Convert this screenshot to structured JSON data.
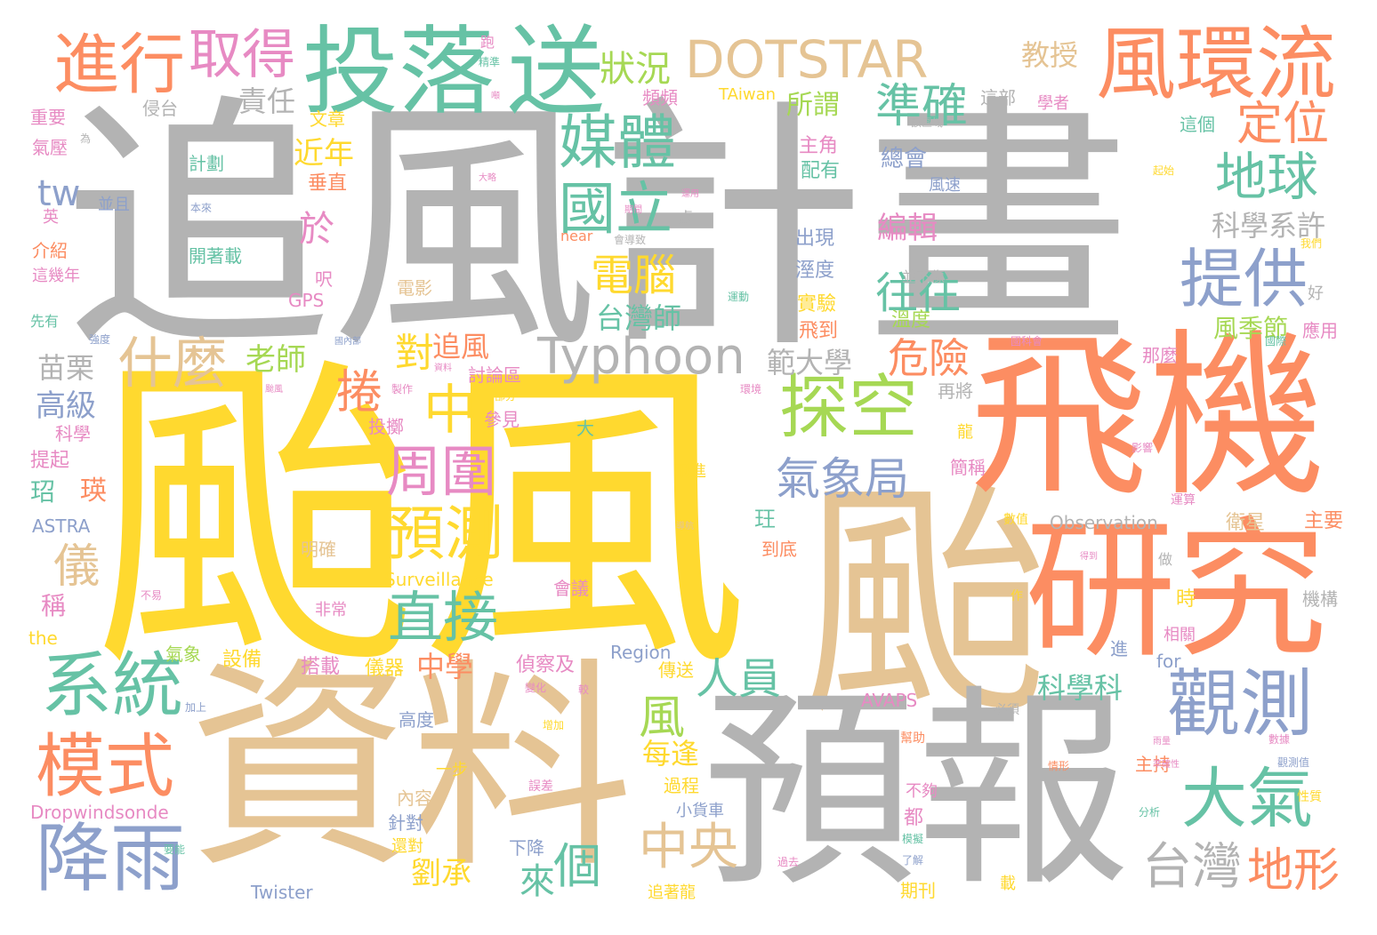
{
  "palette": {
    "gray": "#b3b3b3",
    "yellow": "#ffd92f",
    "tan": "#e5c494",
    "orange": "#fc8d62",
    "green": "#66c2a5",
    "blue": "#8da0cb",
    "lime": "#a6d854",
    "pink": "#e78ac3"
  },
  "words": [
    {
      "text": "追風計畫",
      "color": "gray"
    },
    {
      "text": "颱風",
      "color": "yellow"
    },
    {
      "text": "颱",
      "color": "tan"
    },
    {
      "text": "資料",
      "color": "tan"
    },
    {
      "text": "預報",
      "color": "gray"
    },
    {
      "text": "飛機",
      "color": "orange"
    },
    {
      "text": "研究",
      "color": "orange"
    },
    {
      "text": "投落",
      "color": "green"
    },
    {
      "text": "送",
      "color": "green"
    },
    {
      "text": "DOTSTAR",
      "color": "tan"
    },
    {
      "text": "風環流",
      "color": "orange"
    },
    {
      "text": "進行",
      "color": "orange"
    },
    {
      "text": "取得",
      "color": "pink"
    },
    {
      "text": "媒體",
      "color": "green"
    },
    {
      "text": "國立",
      "color": "green"
    },
    {
      "text": "準確",
      "color": "green"
    },
    {
      "text": "定位",
      "color": "orange"
    },
    {
      "text": "地球",
      "color": "green"
    },
    {
      "text": "提供",
      "color": "blue"
    },
    {
      "text": "探空",
      "color": "lime"
    },
    {
      "text": "觀測",
      "color": "blue"
    },
    {
      "text": "大氣",
      "color": "green"
    },
    {
      "text": "系統",
      "color": "green"
    },
    {
      "text": "模式",
      "color": "orange"
    },
    {
      "text": "降雨",
      "color": "blue"
    },
    {
      "text": "預測",
      "color": "yellow"
    },
    {
      "text": "直接",
      "color": "green"
    },
    {
      "text": "周圍",
      "color": "pink"
    },
    {
      "text": "氣象局",
      "color": "blue"
    },
    {
      "text": "Typhoon",
      "color": "gray"
    },
    {
      "text": "什麼",
      "color": "tan"
    },
    {
      "text": "電腦",
      "color": "yellow"
    },
    {
      "text": "往往",
      "color": "green"
    },
    {
      "text": "危險",
      "color": "orange"
    },
    {
      "text": "中央",
      "color": "tan"
    },
    {
      "text": "台灣",
      "color": "gray"
    },
    {
      "text": "地形",
      "color": "orange"
    },
    {
      "text": "人員",
      "color": "green"
    },
    {
      "text": "個",
      "color": "green"
    },
    {
      "text": "狀況",
      "color": "lime"
    },
    {
      "text": "教授",
      "color": "tan"
    },
    {
      "text": "中",
      "color": "yellow"
    },
    {
      "text": "捲",
      "color": "orange"
    },
    {
      "text": "對",
      "color": "yellow"
    },
    {
      "text": "儀",
      "color": "tan"
    },
    {
      "text": "風",
      "color": "lime"
    },
    {
      "text": "來",
      "color": "green"
    },
    {
      "text": "tw",
      "color": "blue"
    },
    {
      "text": "於",
      "color": "pink"
    },
    {
      "text": "責任",
      "color": "gray"
    },
    {
      "text": "所謂",
      "color": "lime"
    },
    {
      "text": "近年",
      "color": "yellow"
    },
    {
      "text": "老師",
      "color": "lime"
    },
    {
      "text": "追風",
      "color": "orange"
    },
    {
      "text": "台灣師",
      "color": "green"
    },
    {
      "text": "範大學",
      "color": "gray"
    },
    {
      "text": "中學",
      "color": "orange"
    },
    {
      "text": "苗栗",
      "color": "gray"
    },
    {
      "text": "高級",
      "color": "blue"
    },
    {
      "text": "科學系許",
      "color": "gray"
    },
    {
      "text": "風季節",
      "color": "lime"
    },
    {
      "text": "科學科",
      "color": "green"
    },
    {
      "text": "劉承",
      "color": "yellow"
    },
    {
      "text": "每逢",
      "color": "yellow"
    },
    {
      "text": "編輯",
      "color": "pink"
    },
    {
      "text": "總會",
      "color": "blue"
    },
    {
      "text": "主角",
      "color": "pink"
    },
    {
      "text": "配有",
      "color": "green"
    },
    {
      "text": "出現",
      "color": "blue"
    },
    {
      "text": "溼度",
      "color": "blue"
    },
    {
      "text": "實驗",
      "color": "yellow"
    },
    {
      "text": "飛到",
      "color": "orange"
    },
    {
      "text": "溫度",
      "color": "lime"
    },
    {
      "text": "再將",
      "color": "gray"
    },
    {
      "text": "垂直",
      "color": "orange"
    },
    {
      "text": "計劃",
      "color": "green"
    },
    {
      "text": "開著載",
      "color": "green"
    },
    {
      "text": "文章",
      "color": "yellow"
    },
    {
      "text": "頻頻",
      "color": "pink"
    },
    {
      "text": "TAiwan",
      "color": "yellow"
    },
    {
      "text": "這部",
      "color": "gray"
    },
    {
      "text": "這個",
      "color": "green"
    },
    {
      "text": "學者",
      "color": "pink"
    },
    {
      "text": "重要",
      "color": "pink"
    },
    {
      "text": "氣壓",
      "color": "pink"
    },
    {
      "text": "並且",
      "color": "blue"
    },
    {
      "text": "介紹",
      "color": "orange"
    },
    {
      "text": "這幾年",
      "color": "pink"
    },
    {
      "text": "侵台",
      "color": "gray"
    },
    {
      "text": "電影",
      "color": "tan"
    },
    {
      "text": "GPS",
      "color": "pink"
    },
    {
      "text": "先有",
      "color": "green"
    },
    {
      "text": "呎",
      "color": "pink"
    },
    {
      "text": "科學",
      "color": "pink"
    },
    {
      "text": "提起",
      "color": "pink"
    },
    {
      "text": "瑛",
      "color": "orange"
    },
    {
      "text": "玿",
      "color": "green"
    },
    {
      "text": "ASTRA",
      "color": "blue"
    },
    {
      "text": "稱",
      "color": "pink"
    },
    {
      "text": "the",
      "color": "yellow"
    },
    {
      "text": "Dropwindsonde",
      "color": "pink"
    },
    {
      "text": "Twister",
      "color": "blue"
    },
    {
      "text": "Observation",
      "color": "gray"
    },
    {
      "text": "Surveillance",
      "color": "yellow"
    },
    {
      "text": "Region",
      "color": "blue"
    },
    {
      "text": "AVAPS",
      "color": "pink"
    },
    {
      "text": "for",
      "color": "blue"
    },
    {
      "text": "near",
      "color": "orange"
    },
    {
      "text": "討論區",
      "color": "pink"
    },
    {
      "text": "參見",
      "color": "pink"
    },
    {
      "text": "投擲",
      "color": "pink"
    },
    {
      "text": "明確",
      "color": "tan"
    },
    {
      "text": "非常",
      "color": "pink"
    },
    {
      "text": "設備",
      "color": "yellow"
    },
    {
      "text": "氣象",
      "color": "lime"
    },
    {
      "text": "儀器",
      "color": "yellow"
    },
    {
      "text": "搭載",
      "color": "pink"
    },
    {
      "text": "偵察及",
      "color": "pink"
    },
    {
      "text": "高度",
      "color": "blue"
    },
    {
      "text": "一步",
      "color": "yellow"
    },
    {
      "text": "內容",
      "color": "tan"
    },
    {
      "text": "針對",
      "color": "blue"
    },
    {
      "text": "還對",
      "color": "yellow"
    },
    {
      "text": "下降",
      "color": "blue"
    },
    {
      "text": "小貨車",
      "color": "blue"
    },
    {
      "text": "過程",
      "color": "yellow"
    },
    {
      "text": "傳送",
      "color": "yellow"
    },
    {
      "text": "追著龍",
      "color": "yellow"
    },
    {
      "text": "期刊",
      "color": "yellow"
    },
    {
      "text": "不夠",
      "color": "pink"
    },
    {
      "text": "都",
      "color": "pink"
    },
    {
      "text": "主持",
      "color": "orange"
    },
    {
      "text": "相關",
      "color": "pink"
    },
    {
      "text": "時",
      "color": "yellow"
    },
    {
      "text": "進",
      "color": "blue"
    },
    {
      "text": "機構",
      "color": "gray"
    },
    {
      "text": "衛星",
      "color": "tan"
    },
    {
      "text": "主要",
      "color": "orange"
    },
    {
      "text": "應用",
      "color": "pink"
    },
    {
      "text": "那麼",
      "color": "pink"
    },
    {
      "text": "運算",
      "color": "pink"
    },
    {
      "text": "數值",
      "color": "yellow"
    },
    {
      "text": "簡稱",
      "color": "pink"
    },
    {
      "text": "龍",
      "color": "yellow"
    },
    {
      "text": "到底",
      "color": "orange"
    },
    {
      "text": "玨",
      "color": "green"
    },
    {
      "text": "會議",
      "color": "pink"
    },
    {
      "text": "飛進",
      "color": "yellow"
    },
    {
      "text": "大",
      "color": "green"
    },
    {
      "text": "好",
      "color": "gray"
    },
    {
      "text": "風速",
      "color": "blue"
    },
    {
      "text": "並不像",
      "color": "gray"
    },
    {
      "text": "處",
      "color": "gray"
    },
    {
      "text": "載",
      "color": "yellow"
    },
    {
      "text": "做",
      "color": "gray"
    },
    {
      "text": "為",
      "color": "gray"
    },
    {
      "text": "英",
      "color": "pink"
    },
    {
      "text": "本來",
      "color": "blue"
    },
    {
      "text": "運動",
      "color": "green"
    },
    {
      "text": "跑",
      "color": "pink"
    },
    {
      "text": "精準",
      "color": "green"
    },
    {
      "text": "噸",
      "color": "pink"
    },
    {
      "text": "該區域",
      "color": "gray"
    },
    {
      "text": "起始",
      "color": "yellow"
    },
    {
      "text": "大略",
      "color": "pink"
    },
    {
      "text": "運用",
      "color": "pink"
    },
    {
      "text": "會導致",
      "color": "gray"
    },
    {
      "text": "強度",
      "color": "blue"
    },
    {
      "text": "國科會",
      "color": "pink"
    },
    {
      "text": "國內部",
      "color": "blue"
    },
    {
      "text": "環境",
      "color": "pink"
    },
    {
      "text": "製作",
      "color": "pink"
    },
    {
      "text": "部分",
      "color": "yellow"
    },
    {
      "text": "颱風",
      "color": "pink"
    },
    {
      "text": "影響",
      "color": "pink"
    },
    {
      "text": "資料",
      "color": "pink"
    },
    {
      "text": "導航",
      "color": "tan"
    },
    {
      "text": "不易",
      "color": "pink"
    },
    {
      "text": "得到",
      "color": "pink"
    },
    {
      "text": "作",
      "color": "yellow"
    },
    {
      "text": "變化",
      "color": "pink"
    },
    {
      "text": "較",
      "color": "pink"
    },
    {
      "text": "加上",
      "color": "blue"
    },
    {
      "text": "增加",
      "color": "yellow"
    },
    {
      "text": "必須",
      "color": "gray"
    },
    {
      "text": "幫助",
      "color": "orange"
    },
    {
      "text": "誤差",
      "color": "pink"
    },
    {
      "text": "情形",
      "color": "orange"
    },
    {
      "text": "觀測值",
      "color": "blue"
    },
    {
      "text": "數據",
      "color": "pink"
    },
    {
      "text": "雨量",
      "color": "pink"
    },
    {
      "text": "準確性",
      "color": "pink"
    },
    {
      "text": "性質",
      "color": "yellow"
    },
    {
      "text": "分析",
      "color": "green"
    },
    {
      "text": "過去",
      "color": "pink"
    },
    {
      "text": "了解",
      "color": "blue"
    },
    {
      "text": "模擬",
      "color": "green"
    },
    {
      "text": "要能",
      "color": "green"
    },
    {
      "text": "颱",
      "color": "gray"
    },
    {
      "text": "國際",
      "color": "green"
    },
    {
      "text": "期間",
      "color": "pink"
    },
    {
      "text": "我們",
      "color": "yellow"
    }
  ]
}
